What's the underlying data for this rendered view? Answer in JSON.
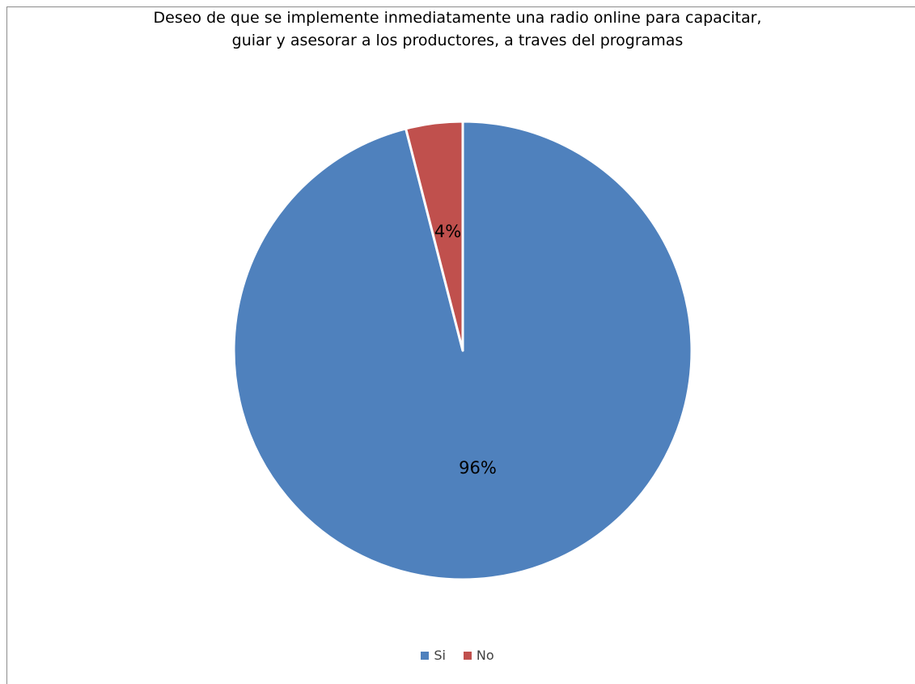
{
  "chart_data": {
    "type": "pie",
    "title_lines": [
      "Deseo de que se implemente inmediatamente una radio online para capacitar,",
      "guiar y asesorar a los productores, a traves del programas"
    ],
    "slices": [
      {
        "name": "Si",
        "value": 96,
        "label": "96%",
        "color": "#4f81bd"
      },
      {
        "name": "No",
        "value": 4,
        "label": "4%",
        "color": "#c0504d"
      }
    ],
    "legend": {
      "position": "bottom",
      "items": [
        {
          "name": "Si",
          "color": "#4f81bd"
        },
        {
          "name": "No",
          "color": "#c0504d"
        }
      ]
    }
  }
}
